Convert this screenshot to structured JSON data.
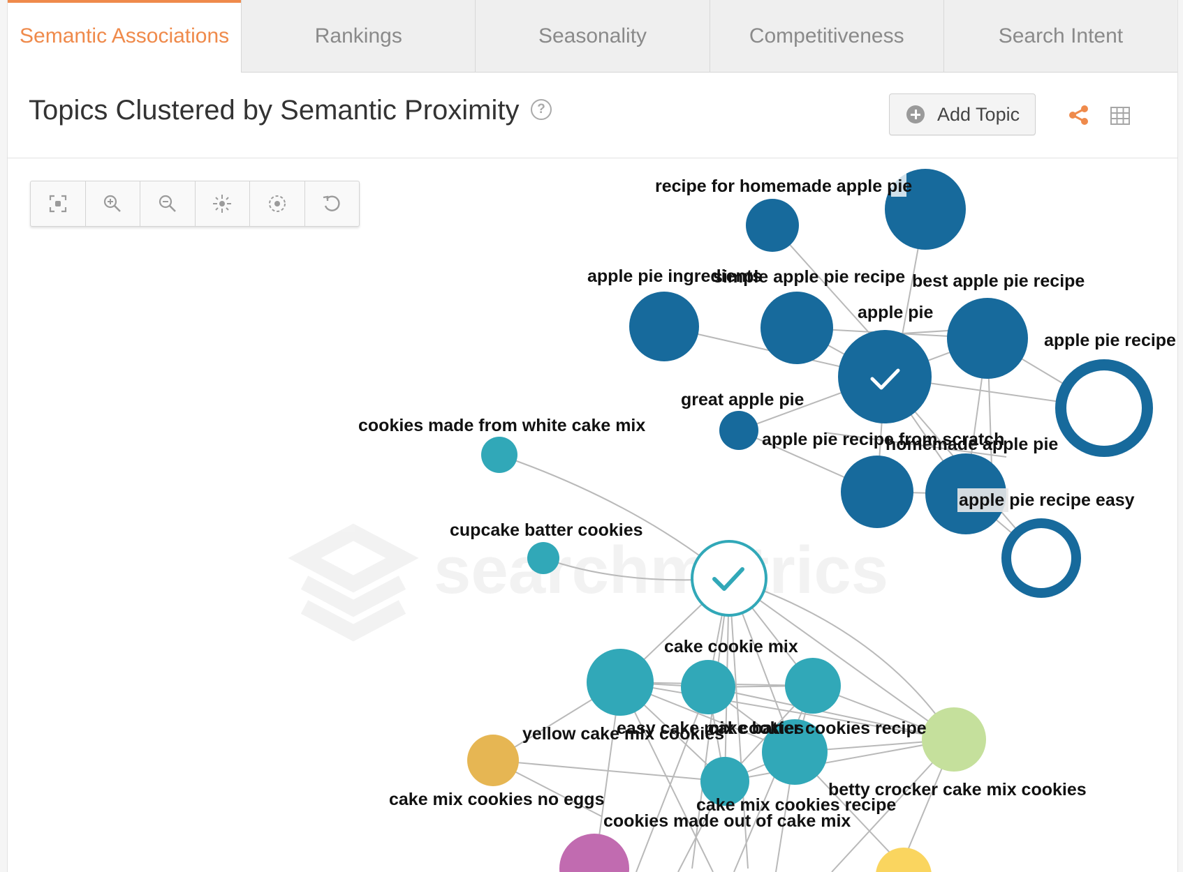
{
  "tabs": [
    {
      "label": "Semantic Associations",
      "active": true
    },
    {
      "label": "Rankings",
      "active": false
    },
    {
      "label": "Seasonality",
      "active": false
    },
    {
      "label": "Competitiveness",
      "active": false
    },
    {
      "label": "Search Intent",
      "active": false
    }
  ],
  "header": {
    "title": "Topics Clustered by Semantic Proximity",
    "help_icon": "?",
    "add_topic_label": "Add Topic"
  },
  "toolbar": {
    "tools": [
      "fit-screen-icon",
      "zoom-in-icon",
      "zoom-out-icon",
      "center-icon",
      "focus-icon",
      "reset-icon"
    ]
  },
  "watermark": "searchmetrics",
  "colors": {
    "accent": "#ef8a4b",
    "apple_cluster": "#176a9c",
    "cake_cluster": "#31a8b8",
    "light_green": "#c5e09c",
    "orange": "#e6b653",
    "magenta": "#c16bb0",
    "yellow": "#fad55f"
  },
  "graph": {
    "labels": {
      "recipe_homemade": "recipe for homemade apple pie",
      "apple_ingredients": "apple pie ingredients",
      "simple_recipe": "simple apple pie recipe",
      "best_recipe": "best apple pie recipe",
      "apple_pie": "apple pie",
      "apple_pie_recipe": "apple pie recipe",
      "great_apple_pie": "great apple pie",
      "from_scratch": "apple pie recipe from scratch",
      "homemade_apple_pie": "homemade apple pie",
      "recipe_easy": "apple pie recipe easy",
      "cookies_white_cake": "cookies made from white cake mix",
      "cupcake_batter": "cupcake batter cookies",
      "cake_cookie_mix": "cake cookie mix",
      "yellow_cake_mix": "yellow cake mix cookies",
      "easy_cake": "easy cake mix cookies",
      "cake_batter_recipe": "cake batter cookies recipe",
      "no_eggs": "cake mix cookies no eggs",
      "betty_crocker": "betty crocker cake mix cookies",
      "cookies_recipe": "cake mix cookies recipe",
      "made_out_of": "cookies made out of cake mix"
    }
  }
}
